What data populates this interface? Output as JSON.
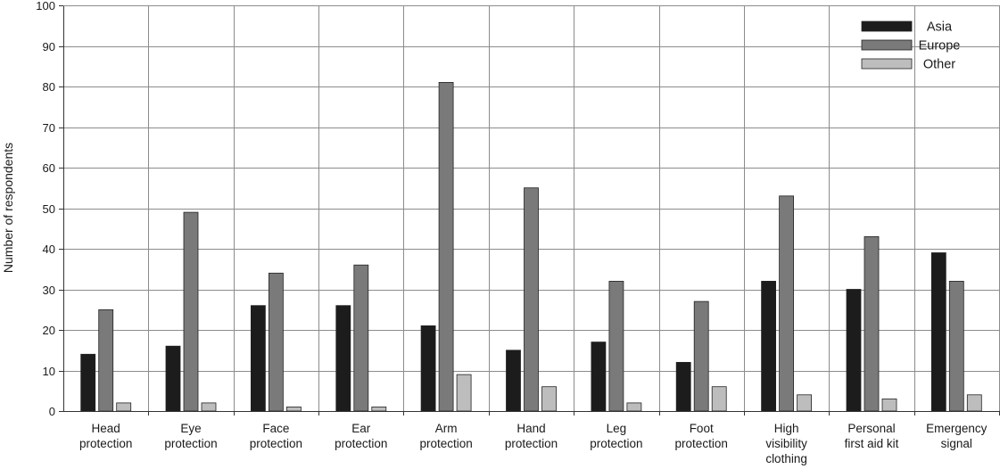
{
  "chart_data": {
    "type": "bar",
    "title": "",
    "xlabel": "",
    "ylabel": "Number of respondents",
    "ylim": [
      0,
      100
    ],
    "yticks": [
      0,
      10,
      20,
      30,
      40,
      50,
      60,
      70,
      80,
      90,
      100
    ],
    "grid": true,
    "legend_position": "top-right",
    "categories": [
      [
        "Head",
        "protection"
      ],
      [
        "Eye",
        "protection"
      ],
      [
        "Face",
        "protection"
      ],
      [
        "Ear",
        "protection"
      ],
      [
        "Arm",
        "protection"
      ],
      [
        "Hand",
        "protection"
      ],
      [
        "Leg",
        "protection"
      ],
      [
        "Foot",
        "protection"
      ],
      [
        "High",
        "visibility",
        "clothing"
      ],
      [
        "Personal",
        "first aid kit"
      ],
      [
        "Emergency",
        "signal"
      ]
    ],
    "series": [
      {
        "name": "Asia",
        "color": "#1c1c1c",
        "values": [
          14,
          16,
          26,
          26,
          21,
          15,
          17,
          12,
          32,
          30,
          39
        ]
      },
      {
        "name": "Europe",
        "color": "#7a7a7a",
        "values": [
          25,
          49,
          34,
          36,
          81,
          55,
          32,
          27,
          53,
          43,
          32
        ]
      },
      {
        "name": "Other",
        "color": "#bdbdbd",
        "values": [
          2,
          2,
          1,
          1,
          9,
          6,
          2,
          6,
          4,
          3,
          4
        ]
      }
    ]
  }
}
